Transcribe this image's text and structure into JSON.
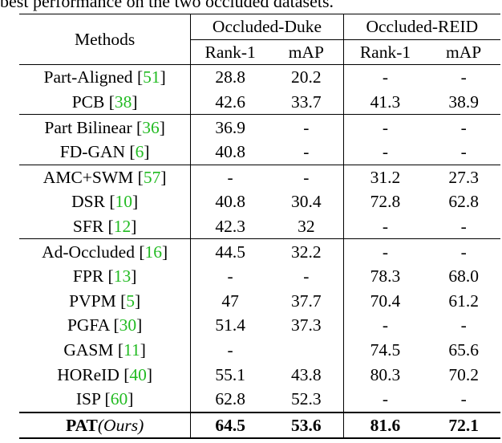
{
  "caption": "best performance on the two occluded datasets.",
  "header": {
    "methods": "Methods",
    "datasets": [
      "Occluded-Duke",
      "Occluded-REID"
    ],
    "metrics": [
      "Rank-1",
      "mAP",
      "Rank-1",
      "mAP"
    ]
  },
  "rows": [
    {
      "name": "Part-Aligned",
      "cite": "51",
      "values": [
        "28.8",
        "20.2",
        "-",
        "-"
      ]
    },
    {
      "name": "PCB",
      "cite": "38",
      "values": [
        "42.6",
        "33.7",
        "41.3",
        "38.9"
      ]
    },
    {
      "name": "Part Bilinear",
      "cite": "36",
      "values": [
        "36.9",
        "-",
        "-",
        "-"
      ]
    },
    {
      "name": "FD-GAN",
      "cite": "6",
      "values": [
        "40.8",
        "-",
        "-",
        "-"
      ]
    },
    {
      "name": "AMC+SWM",
      "cite": "57",
      "values": [
        "-",
        "-",
        "31.2",
        "27.3"
      ]
    },
    {
      "name": "DSR",
      "cite": "10",
      "values": [
        "40.8",
        "30.4",
        "72.8",
        "62.8"
      ]
    },
    {
      "name": "SFR",
      "cite": "12",
      "values": [
        "42.3",
        "32",
        "-",
        "-"
      ]
    },
    {
      "name": "Ad-Occluded",
      "cite": "16",
      "values": [
        "44.5",
        "32.2",
        "-",
        "-"
      ]
    },
    {
      "name": "FPR",
      "cite": "13",
      "values": [
        "-",
        "-",
        "78.3",
        "68.0"
      ]
    },
    {
      "name": "PVPM",
      "cite": "5",
      "values": [
        "47",
        "37.7",
        "70.4",
        "61.2"
      ]
    },
    {
      "name": "PGFA",
      "cite": "30",
      "values": [
        "51.4",
        "37.3",
        "-",
        "-"
      ]
    },
    {
      "name": "GASM",
      "cite": "11",
      "values": [
        "-",
        "",
        "74.5",
        "65.6"
      ]
    },
    {
      "name": "HOReID",
      "cite": "40",
      "values": [
        "55.1",
        "43.8",
        "80.3",
        "70.2"
      ]
    },
    {
      "name": "ISP",
      "cite": "60",
      "values": [
        "62.8",
        "52.3",
        "-",
        "-"
      ]
    }
  ],
  "ours": {
    "name": "PAT",
    "suffix": "Ours",
    "values": [
      "64.5",
      "53.6",
      "81.6",
      "72.1"
    ]
  }
}
